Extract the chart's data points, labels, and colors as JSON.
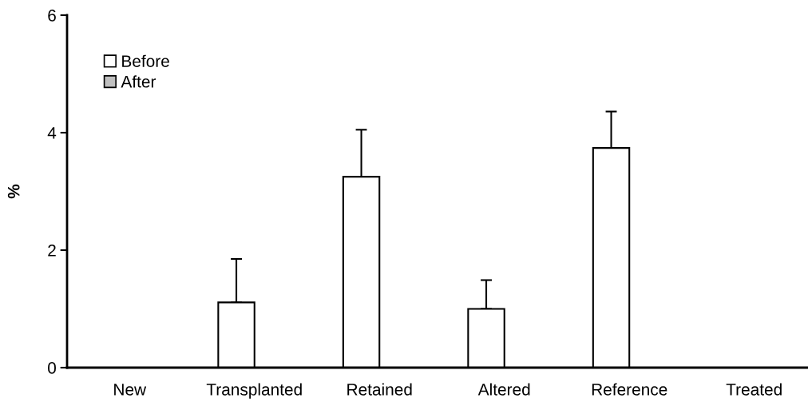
{
  "chart_data": {
    "type": "bar",
    "ylabel": "%",
    "categories": [
      "New",
      "Transplanted",
      "Retained",
      "Altered",
      "Reference",
      "Treated"
    ],
    "series": [
      {
        "name": "Before",
        "color": "#ffffff",
        "values": [
          null,
          1.11,
          3.25,
          1.0,
          3.74,
          null
        ],
        "errors": [
          null,
          [
            1.11,
            1.85
          ],
          [
            3.25,
            4.05
          ],
          [
            1.0,
            1.49
          ],
          [
            3.74,
            4.36
          ],
          null
        ]
      },
      {
        "name": "After",
        "color": "#c0c0c0",
        "values": [
          null,
          null,
          null,
          null,
          null,
          null
        ]
      }
    ],
    "ylim": [
      0,
      6
    ],
    "yticks": [
      0,
      2,
      4,
      6
    ],
    "grid": false,
    "legend": "top left"
  }
}
